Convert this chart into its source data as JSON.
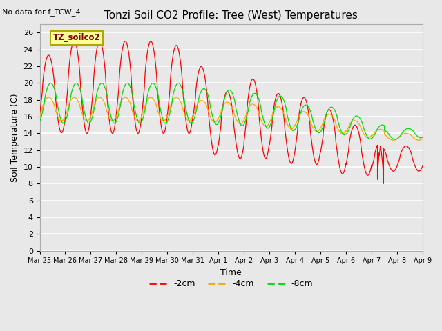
{
  "title": "Tonzi Soil CO2 Profile: Tree (West) Temperatures",
  "no_data_text": "No data for f_TCW_4",
  "annotation_box": "TZ_soilco2",
  "xlabel": "Time",
  "ylabel": "Soil Temperature (C)",
  "ylim": [
    0,
    27
  ],
  "yticks": [
    0,
    2,
    4,
    6,
    8,
    10,
    12,
    14,
    16,
    18,
    20,
    22,
    24,
    26
  ],
  "xtick_labels": [
    "Mar 25",
    "Mar 26",
    "Mar 27",
    "Mar 28",
    "Mar 29",
    "Mar 30",
    "Mar 31",
    "Apr 1",
    "Apr 2",
    "Apr 3",
    "Apr 4",
    "Apr 5",
    "Apr 6",
    "Apr 7",
    "Apr 8",
    "Apr 9"
  ],
  "line_colors": [
    "#ff0000",
    "#ffa500",
    "#00dd00"
  ],
  "line_labels": [
    "-2cm",
    "-4cm",
    "-8cm"
  ],
  "background_color": "#e8e8e8",
  "grid_color": "#ffffff"
}
